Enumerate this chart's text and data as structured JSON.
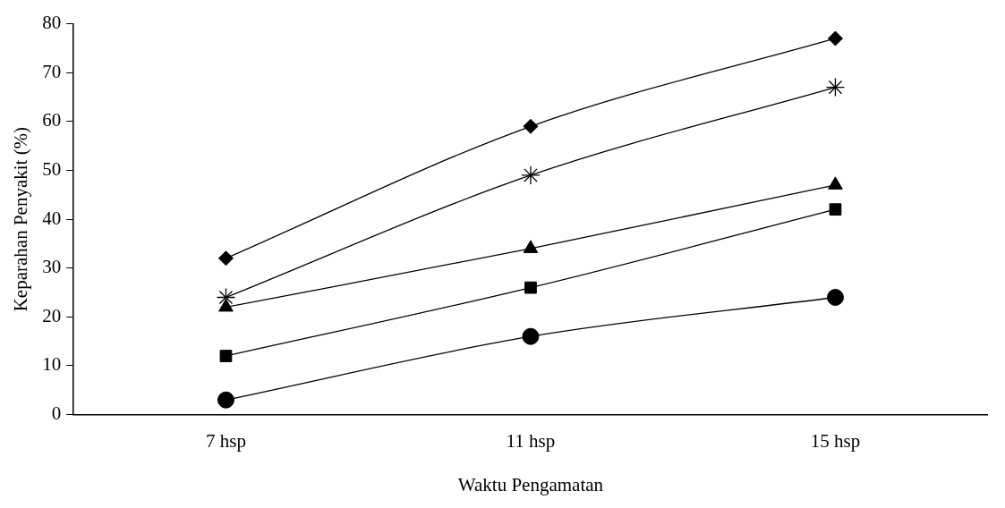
{
  "chart_data": {
    "type": "line",
    "xlabel": "Waktu Pengamatan",
    "ylabel": "Keparahan Penyakit (%)",
    "categories": [
      "7 hsp",
      "11 hsp",
      "15 hsp"
    ],
    "series": [
      {
        "color": "#000000",
        "marker": "diamond",
        "values": [
          32,
          59,
          77
        ]
      },
      {
        "color": "#000000",
        "marker": "cross",
        "values": [
          24,
          49,
          67
        ]
      },
      {
        "color": "#000000",
        "marker": "triangle",
        "values": [
          22,
          34,
          47
        ]
      },
      {
        "color": "#000000",
        "marker": "square",
        "values": [
          12,
          26,
          42
        ]
      },
      {
        "color": "#000000",
        "marker": "circle",
        "values": [
          3,
          16,
          24
        ]
      }
    ],
    "ylim": [
      0,
      80
    ],
    "yticks": [
      0,
      10,
      20,
      30,
      40,
      50,
      60,
      70,
      80
    ],
    "grid": false,
    "legend": false
  }
}
